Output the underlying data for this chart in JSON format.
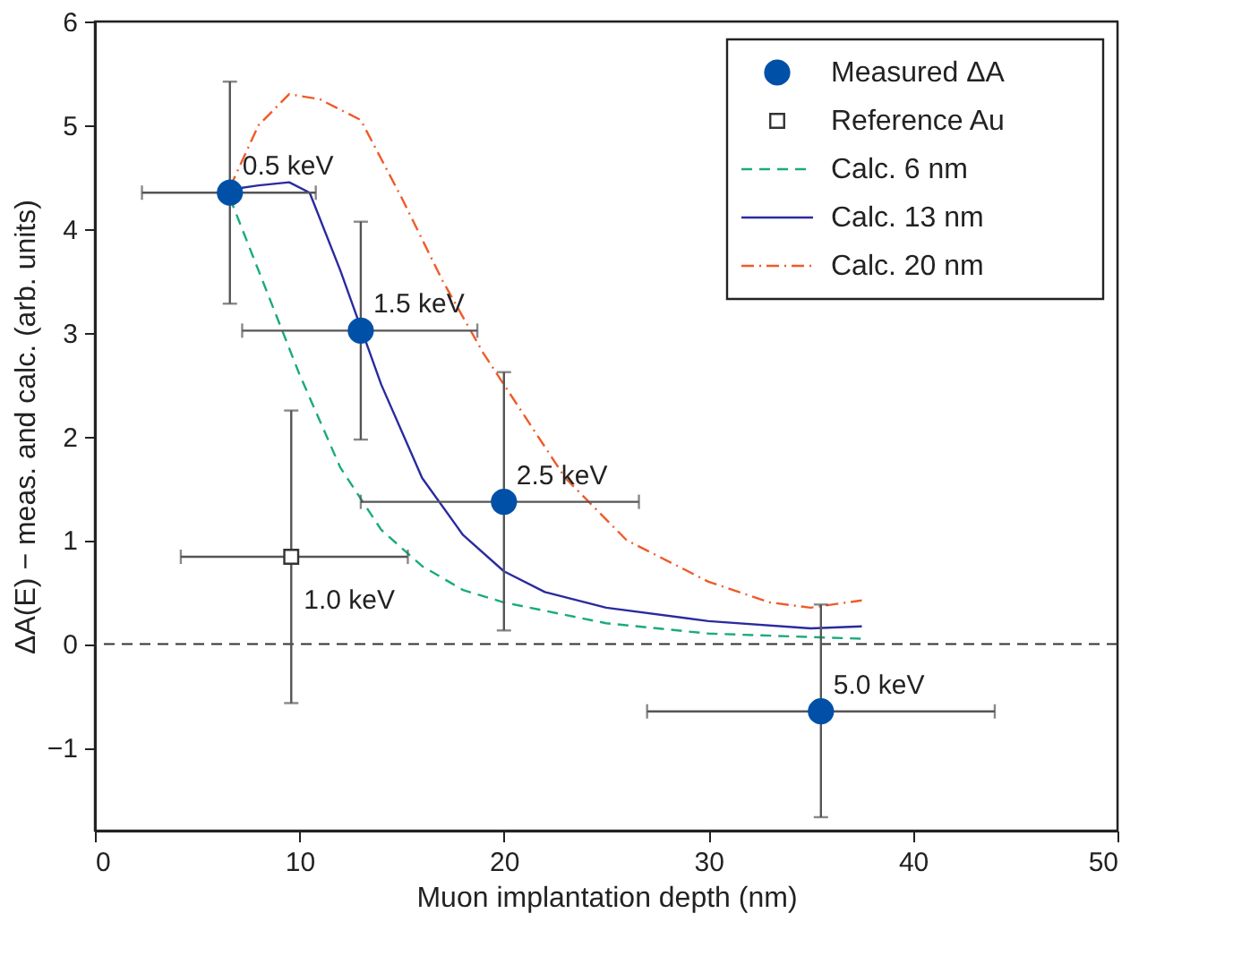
{
  "chart_data": {
    "type": "scatter",
    "xlabel": "Muon implantation depth (nm)",
    "ylabel": "ΔA(E) − meas. and calc. (arb. units)",
    "xlim": [
      0,
      50
    ],
    "xticks": [
      0,
      10,
      20,
      30,
      40,
      50
    ],
    "ylim": [
      -1.8,
      6
    ],
    "yticks": [
      -1,
      0,
      1,
      2,
      3,
      4,
      5,
      6
    ],
    "grid": false,
    "legend": "top right",
    "series": [
      {
        "name": "Measured ΔA",
        "type": "scatter",
        "marker": "circle",
        "color": "#0050a8",
        "x": [
          6.6,
          13,
          20,
          35.5
        ],
        "values": [
          4.35,
          3.02,
          1.37,
          -0.65
        ],
        "errors": [
          [
            3.28,
            5.42
          ],
          [
            1.97,
            4.07
          ],
          [
            0.13,
            2.62
          ],
          [
            -1.67,
            0.38
          ]
        ],
        "xerrors": [
          [
            2.3,
            10.8
          ],
          [
            7.2,
            18.7
          ],
          [
            13,
            26.6
          ],
          [
            27,
            44
          ]
        ]
      },
      {
        "name": "Reference Au",
        "type": "scatter",
        "marker": "square",
        "color": "#333333",
        "x": [
          9.6
        ],
        "values": [
          0.84
        ],
        "errors": [
          [
            -0.57,
            2.25
          ]
        ],
        "xerrors": [
          [
            4.2,
            15.3
          ]
        ]
      },
      {
        "name": "Calc.   6 nm",
        "type": "line",
        "line_style": "dashed",
        "color": "#1aaa80",
        "x": [
          6.6,
          8,
          10,
          12,
          14,
          16,
          18,
          20,
          25,
          30,
          37.5
        ],
        "values": [
          4.3,
          3.6,
          2.6,
          1.7,
          1.1,
          0.75,
          0.52,
          0.4,
          0.2,
          0.1,
          0.05
        ]
      },
      {
        "name": "Calc. 13 nm",
        "type": "line",
        "line_style": "solid",
        "color": "#2a2aa0",
        "x": [
          6.6,
          8,
          9.5,
          10.5,
          12,
          14,
          16,
          18,
          20,
          22,
          25,
          30,
          35,
          37.5
        ],
        "values": [
          4.38,
          4.42,
          4.45,
          4.35,
          3.6,
          2.5,
          1.6,
          1.05,
          0.7,
          0.5,
          0.35,
          0.22,
          0.15,
          0.17
        ]
      },
      {
        "name": "Calc. 20 nm",
        "type": "line",
        "line_style": "dashdot",
        "color": "#f05a28",
        "x": [
          6.6,
          8,
          9.5,
          11,
          13,
          15,
          17,
          19,
          21,
          23,
          26,
          30,
          33,
          35,
          37.5
        ],
        "values": [
          4.4,
          5.0,
          5.3,
          5.25,
          5.05,
          4.3,
          3.5,
          2.8,
          2.2,
          1.6,
          1.0,
          0.6,
          0.4,
          0.35,
          0.42
        ]
      }
    ],
    "ref_lines": [
      {
        "axis": "y",
        "value": 0,
        "color": "#333333",
        "line_style": "dashed"
      }
    ],
    "annotations": [
      {
        "text": "0.5 keV",
        "x": 6.6,
        "y": 4.35
      },
      {
        "text": "1.5 keV",
        "x": 13,
        "y": 3.02
      },
      {
        "text": "2.5 keV",
        "x": 20,
        "y": 1.37
      },
      {
        "text": "1.0 keV",
        "x": 9.6,
        "y": 0.84
      },
      {
        "text": "5.0 keV",
        "x": 35.5,
        "y": -0.65
      }
    ]
  }
}
